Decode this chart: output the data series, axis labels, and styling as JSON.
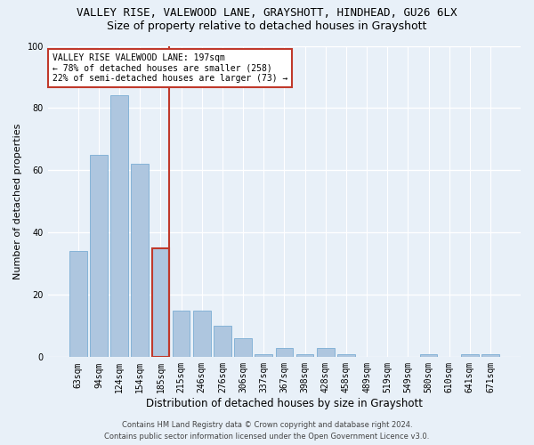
{
  "title1": "VALLEY RISE, VALEWOOD LANE, GRAYSHOTT, HINDHEAD, GU26 6LX",
  "title2": "Size of property relative to detached houses in Grayshott",
  "xlabel": "Distribution of detached houses by size in Grayshott",
  "ylabel": "Number of detached properties",
  "categories": [
    "63sqm",
    "94sqm",
    "124sqm",
    "154sqm",
    "185sqm",
    "215sqm",
    "246sqm",
    "276sqm",
    "306sqm",
    "337sqm",
    "367sqm",
    "398sqm",
    "428sqm",
    "458sqm",
    "489sqm",
    "519sqm",
    "549sqm",
    "580sqm",
    "610sqm",
    "641sqm",
    "671sqm"
  ],
  "values": [
    34,
    65,
    84,
    62,
    35,
    15,
    15,
    10,
    6,
    1,
    3,
    1,
    3,
    1,
    0,
    0,
    0,
    1,
    0,
    1,
    1
  ],
  "bar_color": "#aec6df",
  "bar_edge_color": "#7badd4",
  "highlight_bar_index": 4,
  "highlight_bar_edge_color": "#c0392b",
  "vline_color": "#c0392b",
  "annotation_title": "VALLEY RISE VALEWOOD LANE: 197sqm",
  "annotation_line1": "← 78% of detached houses are smaller (258)",
  "annotation_line2": "22% of semi-detached houses are larger (73) →",
  "annotation_box_color": "#ffffff",
  "annotation_box_edge": "#c0392b",
  "bg_color": "#e8f0f8",
  "grid_color": "#ffffff",
  "footer1": "Contains HM Land Registry data © Crown copyright and database right 2024.",
  "footer2": "Contains public sector information licensed under the Open Government Licence v3.0.",
  "ylim": [
    0,
    100
  ],
  "title1_fontsize": 9,
  "title2_fontsize": 9,
  "xlabel_fontsize": 8.5,
  "ylabel_fontsize": 8,
  "tick_fontsize": 7,
  "annotation_fontsize": 7,
  "footer_fontsize": 6
}
